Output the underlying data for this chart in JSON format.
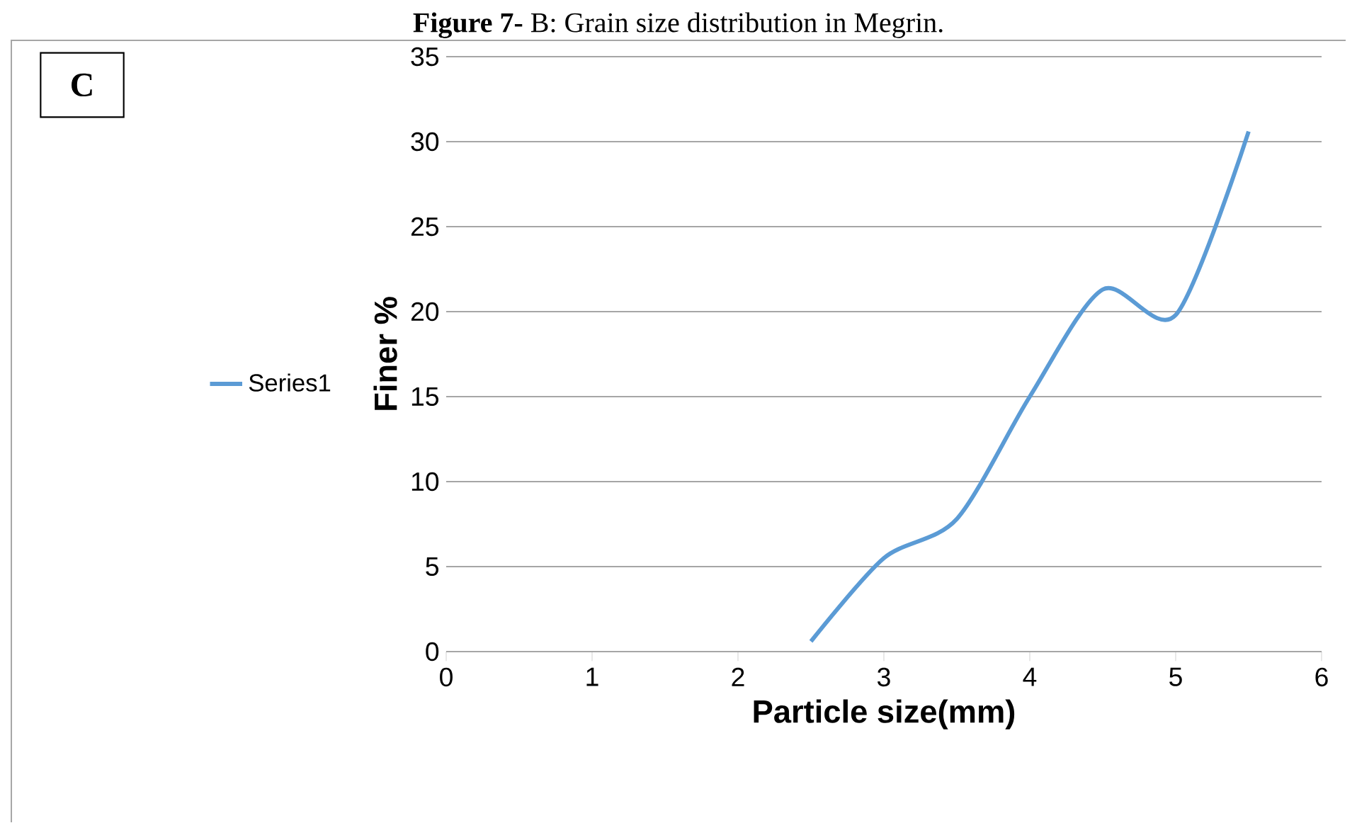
{
  "chart_data": {
    "type": "line",
    "title": "**Figure 7-** B: Grain size distribution in Megrin.",
    "annotations": [
      "C"
    ],
    "xlabel": "Particle size(mm)",
    "ylabel": "Finer %",
    "series": [
      {
        "name": "Series1",
        "color": "#5b9bd5",
        "x": [
          2.5,
          3,
          3.5,
          4,
          4.5,
          5,
          5.5
        ],
        "values": [
          0.6,
          5.5,
          7.8,
          15,
          21.3,
          19.8,
          30.6
        ]
      }
    ],
    "xlim": [
      0,
      6
    ],
    "xticks": [
      0,
      1,
      2,
      3,
      4,
      5,
      6
    ],
    "ylim": [
      0,
      35
    ],
    "yticks": [
      0,
      5,
      10,
      15,
      20,
      25,
      30,
      35
    ],
    "grid": "y",
    "legend": "left",
    "marker": "none",
    "line_style": "solid"
  }
}
